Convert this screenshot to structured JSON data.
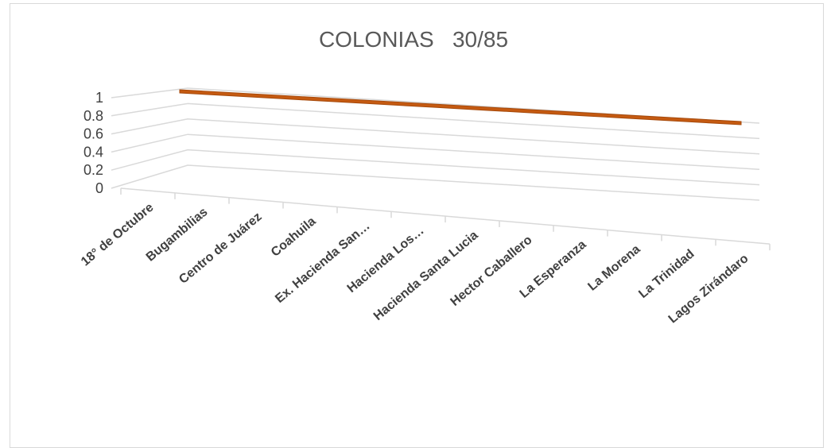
{
  "chart_data": {
    "type": "line",
    "style": "3d",
    "title": "COLONIAS   30/85",
    "categories": [
      "18° de Octubre",
      "Bugambilias",
      "Centro de Juárez",
      "Coahuila",
      "Ex. Hacienda San…",
      "Hacienda Los…",
      "Hacienda Santa Lucia",
      "Hector Caballero",
      "La Esperanza",
      "La Morena",
      "La Trinidad",
      "Lagos Zirándaro"
    ],
    "series": [
      {
        "values": [
          1,
          1,
          1,
          1,
          1,
          1,
          1,
          1,
          1,
          1,
          1,
          1
        ],
        "color": "#c55a11"
      }
    ],
    "yticks": [
      "0",
      "0.2",
      "0.4",
      "0.6",
      "0.8",
      "1"
    ],
    "ylim": [
      0,
      1
    ],
    "grid": true,
    "legend": "none",
    "xlabel": "",
    "ylabel": ""
  }
}
